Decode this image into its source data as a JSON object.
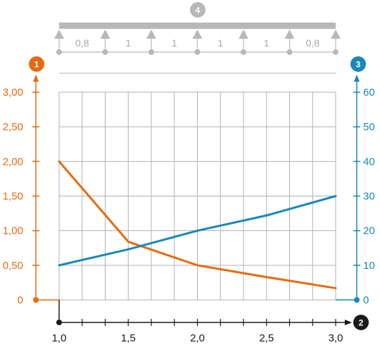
{
  "colors": {
    "left_axis": "#e86a10",
    "right_axis": "#1888b8",
    "beam": "#b8b8b8",
    "grid": "#b0b0b0",
    "x_axis": "#1a1a1a"
  },
  "badges": {
    "left_axis": "1",
    "x_axis": "2",
    "right_axis": "3",
    "beam": "4"
  },
  "beam": {
    "supports": 7,
    "span_labels": [
      "0,8",
      "1",
      "1",
      "1",
      "1",
      "0,8"
    ]
  },
  "chart_data": {
    "type": "line",
    "x_ticks": [
      "1,0",
      "1,5",
      "2,0",
      "2,5",
      "3,0"
    ],
    "x_range": [
      1.0,
      3.0
    ],
    "y_left_ticks": [
      "0",
      "0,50",
      "1,00",
      "1,50",
      "2,00",
      "2,50",
      "3,00"
    ],
    "y_left_range": [
      0,
      3.0
    ],
    "y_right_ticks": [
      "0",
      "10",
      "20",
      "30",
      "40",
      "50",
      "60"
    ],
    "y_right_range": [
      0,
      60
    ],
    "grid": true,
    "series": [
      {
        "axis": "left",
        "color": "#e86a10",
        "x": [
          1.0,
          1.5,
          2.0,
          2.5,
          3.0
        ],
        "y": [
          2.0,
          0.84,
          0.5,
          0.33,
          0.17
        ]
      },
      {
        "axis": "right",
        "color": "#1888b8",
        "x": [
          1.0,
          1.5,
          2.0,
          2.5,
          3.0
        ],
        "y": [
          10,
          14.6,
          20,
          24.4,
          30
        ]
      }
    ]
  }
}
